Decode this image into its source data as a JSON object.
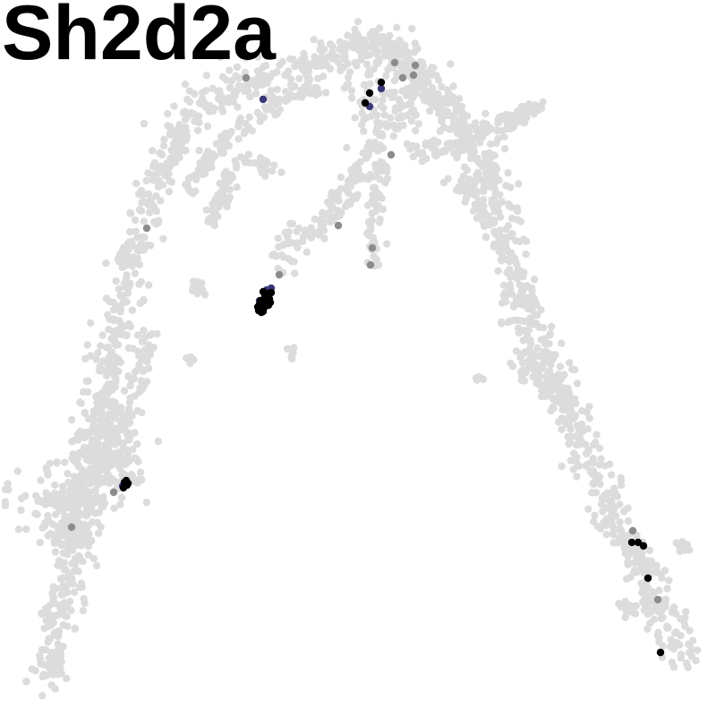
{
  "chart_data": {
    "type": "scatter",
    "title": "Sh2d2a",
    "xlabel": "",
    "ylabel": "",
    "grid": false,
    "axes_visible": false,
    "legend": "none",
    "colors": {
      "background_cells": "#dcdcdc",
      "low_expression": "#8c8c8c",
      "mid_expression": "#3b3877",
      "high_expression": "#000000"
    },
    "series": [
      {
        "expression": "zero",
        "color": "#dcdcdc",
        "arms": [
          {
            "path": [
              [
                52,
                768
              ],
              [
                60,
                720
              ],
              [
                72,
                660
              ],
              [
                85,
                600
              ],
              [
                95,
                540
              ],
              [
                108,
                470
              ],
              [
                125,
                400
              ],
              [
                140,
                320
              ],
              [
                162,
                240
              ],
              [
                190,
                170
              ],
              [
                225,
                120
              ],
              [
                265,
                95
              ],
              [
                310,
                80
              ],
              [
                360,
                70
              ],
              [
                400,
                45
              ],
              [
                440,
                70
              ],
              [
                480,
                100
              ],
              [
                530,
                160
              ],
              [
                555,
                230
              ],
              [
                570,
                300
              ],
              [
                590,
                360
              ],
              [
                615,
                420
              ],
              [
                650,
                500
              ],
              [
                685,
                570
              ],
              [
                720,
                640
              ],
              [
                750,
                710
              ],
              [
                768,
                733
              ]
            ],
            "count": 1500,
            "spread": 11
          },
          {
            "path": [
              [
                35,
                550
              ],
              [
                70,
                580
              ],
              [
                105,
                540
              ],
              [
                130,
                520
              ],
              [
                125,
                470
              ]
            ],
            "count": 260,
            "spread": 18
          },
          {
            "path": [
              [
                60,
                610
              ],
              [
                85,
                560
              ],
              [
                110,
                520
              ],
              [
                150,
                440
              ],
              [
                170,
                380
              ]
            ],
            "count": 120,
            "spread": 6
          },
          {
            "path": [
              [
                210,
                210
              ],
              [
                250,
                160
              ],
              [
                290,
                130
              ],
              [
                320,
                105
              ],
              [
                360,
                95
              ]
            ],
            "count": 120,
            "spread": 6
          },
          {
            "path": [
              [
                235,
                250
              ],
              [
                255,
                200
              ],
              [
                270,
                175
              ]
            ],
            "count": 50,
            "spread": 6
          },
          {
            "path": [
              [
                310,
                300
              ],
              [
                330,
                265
              ],
              [
                360,
                250
              ],
              [
                385,
                220
              ],
              [
                400,
                190
              ],
              [
                430,
                140
              ]
            ],
            "count": 140,
            "spread": 7
          },
          {
            "path": [
              [
                415,
                300
              ],
              [
                418,
                260
              ],
              [
                420,
                220
              ],
              [
                425,
                180
              ]
            ],
            "count": 70,
            "spread": 5
          },
          {
            "path": [
              [
                460,
                170
              ],
              [
                500,
                165
              ],
              [
                540,
                150
              ],
              [
                580,
                130
              ],
              [
                603,
                120
              ]
            ],
            "count": 120,
            "spread": 6
          },
          {
            "path": [
              [
                505,
                200
              ],
              [
                530,
                220
              ],
              [
                545,
                245
              ],
              [
                560,
                280
              ]
            ],
            "count": 60,
            "spread": 6
          },
          {
            "path": [
              [
                575,
                400
              ],
              [
                600,
                420
              ],
              [
                630,
                440
              ]
            ],
            "count": 60,
            "spread": 8
          },
          {
            "path": [
              [
                395,
                60
              ],
              [
                420,
                45
              ],
              [
                460,
                70
              ],
              [
                480,
                90
              ],
              [
                450,
                130
              ],
              [
                420,
                120
              ],
              [
                400,
                100
              ]
            ],
            "count": 200,
            "spread": 12
          },
          {
            "path": [
              [
                290,
                175
              ],
              [
                300,
                195
              ]
            ],
            "count": 20,
            "spread": 5
          },
          {
            "path": [
              [
                218,
                315
              ],
              [
                222,
                330
              ]
            ],
            "count": 14,
            "spread": 4
          },
          {
            "path": [
              [
                210,
                400
              ],
              [
                215,
                405
              ]
            ],
            "count": 6,
            "spread": 3
          },
          {
            "path": [
              [
                325,
                390
              ],
              [
                328,
                396
              ]
            ],
            "count": 6,
            "spread": 3
          },
          {
            "path": [
              [
                530,
                418
              ],
              [
                538,
                425
              ]
            ],
            "count": 6,
            "spread": 3
          },
          {
            "path": [
              [
                695,
                675
              ],
              [
                705,
                690
              ]
            ],
            "count": 12,
            "spread": 5
          },
          {
            "path": [
              [
                755,
                605
              ],
              [
                765,
                615
              ]
            ],
            "count": 8,
            "spread": 4
          }
        ]
      },
      {
        "expression": "low",
        "color": "#8c8c8c",
        "points": [
          [
            275,
            87
          ],
          [
            164,
            255
          ],
          [
            378,
            252
          ],
          [
            416,
            277
          ],
          [
            414,
            296
          ],
          [
            312,
            307
          ],
          [
            437,
            173
          ],
          [
            441,
            70
          ],
          [
            450,
            87
          ],
          [
            464,
            73
          ],
          [
            462,
            84
          ],
          [
            127,
            550
          ],
          [
            80,
            589
          ],
          [
            707,
            593
          ],
          [
            735,
            670
          ]
        ]
      },
      {
        "expression": "mid",
        "color": "#3b3877",
        "points": [
          [
            294,
            111
          ],
          [
            426,
            99
          ],
          [
            413,
            119
          ],
          [
            290,
            336
          ],
          [
            298,
            324
          ],
          [
            303,
            322
          ],
          [
            137,
            543
          ]
        ]
      },
      {
        "expression": "high",
        "color": "#000000",
        "points": [
          [
            413,
            104
          ],
          [
            426,
            92
          ],
          [
            408,
            115
          ],
          [
            294,
            326
          ],
          [
            299,
            330
          ],
          [
            290,
            340
          ],
          [
            295,
            344
          ],
          [
            301,
            334
          ],
          [
            292,
            349
          ],
          [
            288,
            343
          ],
          [
            297,
            338
          ],
          [
            303,
            327
          ],
          [
            296,
            331
          ],
          [
            291,
            336
          ],
          [
            300,
            341
          ],
          [
            289,
            347
          ],
          [
            294,
            348
          ],
          [
            302,
            338
          ],
          [
            298,
            328
          ],
          [
            293,
            340
          ],
          [
            139,
            539
          ],
          [
            141,
            537
          ],
          [
            143,
            540
          ],
          [
            138,
            545
          ],
          [
            142,
            542
          ],
          [
            706,
            606
          ],
          [
            713,
            606
          ],
          [
            719,
            610
          ],
          [
            724,
            646
          ],
          [
            738,
            729
          ]
        ]
      }
    ]
  }
}
